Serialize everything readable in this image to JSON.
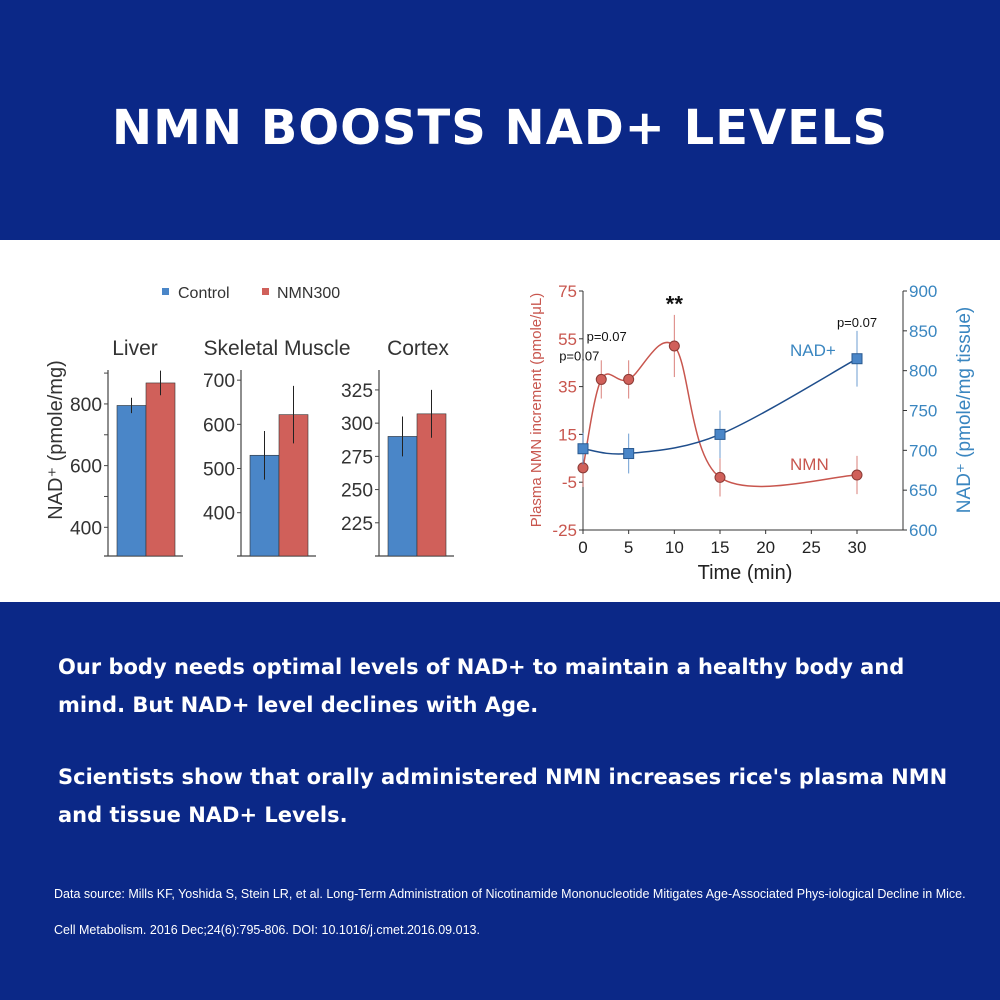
{
  "header": {
    "title": "NMN BOOSTS NAD+ LEVELS"
  },
  "colors": {
    "background": "#0b2887",
    "control": "#4a86c8",
    "nmn300": "#d0605a",
    "nmn_line": "#c8564e",
    "nad_line": "#1f4e8c",
    "nad_axis": "#3a86c0"
  },
  "chart_data": [
    {
      "type": "bar",
      "legend": [
        "Control",
        "NMN300"
      ],
      "legend_placement": "top",
      "ylabel": "NAD⁺ (pmole/mg)",
      "panels": [
        {
          "title": "Liver",
          "ylim": [
            307,
            910
          ],
          "ticks": [
            "400",
            "600",
            "800"
          ],
          "tick_values": [
            400,
            600,
            800
          ],
          "minor_ticks": [
            500,
            700,
            900
          ],
          "values": [
            795,
            868
          ],
          "errors": [
            25,
            40
          ]
        },
        {
          "title": "Skeletal Muscle",
          "ylim": [
            302,
            723
          ],
          "ticks": [
            "400",
            "500",
            "600",
            "700"
          ],
          "tick_values": [
            400,
            500,
            600,
            700
          ],
          "minor_ticks": [],
          "values": [
            530,
            622
          ],
          "errors": [
            55,
            65
          ]
        },
        {
          "title": "Cortex",
          "ylim": [
            200,
            340
          ],
          "ticks": [
            "225",
            "250",
            "275",
            "300",
            "325"
          ],
          "tick_values": [
            225,
            250,
            275,
            300,
            325
          ],
          "minor_ticks": [],
          "values": [
            290,
            307
          ],
          "errors": [
            15,
            18
          ]
        }
      ]
    },
    {
      "type": "line",
      "xlabel": "Time (min)",
      "xlim": [
        0,
        35
      ],
      "xticks": [
        "0",
        "5",
        "10",
        "15",
        "20",
        "25",
        "30"
      ],
      "xtick_values": [
        0,
        5,
        10,
        15,
        20,
        25,
        30
      ],
      "ylabel_left": "Plasma NMN increment (pmole/μL)",
      "ylim_left": [
        -25,
        75
      ],
      "yticks_left": [
        "-25",
        "-5",
        "15",
        "35",
        "55",
        "75"
      ],
      "ytick_values_left": [
        -25,
        -5,
        15,
        35,
        55,
        75
      ],
      "ylabel_right": "NAD⁺ (pmole/mg tissue)",
      "ylim_right": [
        600,
        900
      ],
      "yticks_right": [
        "600",
        "650",
        "700",
        "750",
        "800",
        "850",
        "900"
      ],
      "ytick_values_right": [
        600,
        650,
        700,
        750,
        800,
        850,
        900
      ],
      "series": [
        {
          "name": "NMN",
          "axis": "left",
          "x": [
            0,
            2,
            5,
            10,
            15,
            30
          ],
          "y": [
            1,
            38,
            38,
            52,
            -3,
            -2
          ],
          "errors": [
            8,
            8,
            8,
            13,
            8,
            8
          ]
        },
        {
          "name": "NAD+",
          "axis": "right",
          "x": [
            0,
            5,
            15,
            30
          ],
          "y": [
            702,
            696,
            720,
            815
          ],
          "errors": [
            20,
            25,
            30,
            35
          ]
        }
      ],
      "annotations": [
        {
          "text": "p=0.07",
          "x": 2,
          "y": 46
        },
        {
          "text": "p=0.07",
          "x": 5,
          "y": 54
        },
        {
          "text": "**",
          "x": 10,
          "y": 69
        },
        {
          "text": "p=0.07",
          "x": 30,
          "y": 60
        }
      ]
    }
  ],
  "body": {
    "p1": "Our  body needs optimal levels of NAD+ to maintain a healthy body and mind. But NAD+ level declines with Age.",
    "p2": "Scientists show that orally administered NMN increases rice's plasma NMN and tissue NAD+ Levels."
  },
  "source": "Data source: Mills KF, Yoshida S, Stein LR, et al. Long-Term Administration of Nicotinamide Mononucleotide Mitigates Age-Associated Phys-iological Decline in Mice. Cell Metabolism. 2016 Dec;24(6):795-806. DOI: 10.1016/j.cmet.2016.09.013."
}
